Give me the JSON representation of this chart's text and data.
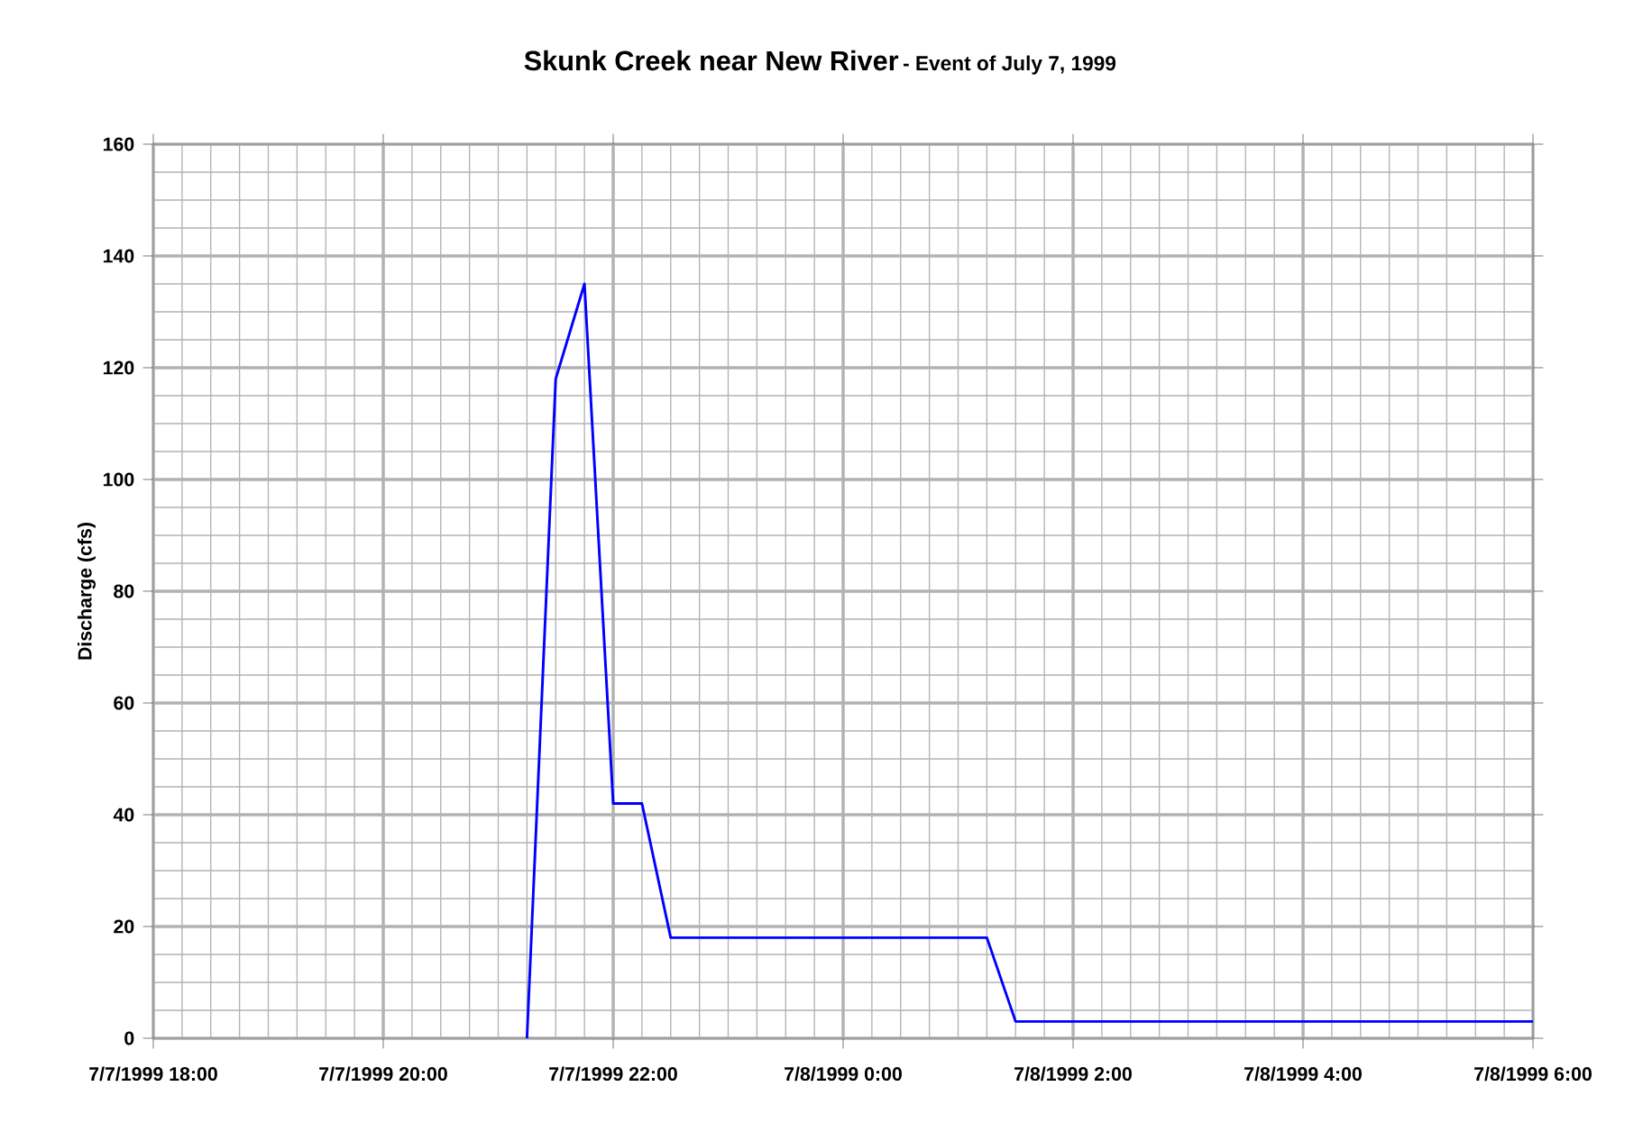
{
  "chart_data": {
    "type": "line",
    "title": "Skunk Creek near New River",
    "subtitle": "- Event of July 7, 1999",
    "ylabel": "Discharge (cfs)",
    "x": [
      "1999-07-07T21:15",
      "1999-07-07T21:30",
      "1999-07-07T21:45",
      "1999-07-07T22:00",
      "1999-07-07T22:15",
      "1999-07-07T22:30",
      "1999-07-08T01:15",
      "1999-07-08T01:30",
      "1999-07-08T06:00"
    ],
    "series": [
      {
        "color": "#0000ff",
        "values": [
          0,
          118,
          135,
          42,
          42,
          18,
          18,
          3,
          3
        ]
      }
    ],
    "xlim": [
      "1999-07-07T18:00",
      "1999-07-08T06:00"
    ],
    "xticks": [
      {
        "value": "1999-07-07T18:00",
        "label": "7/7/1999 18:00"
      },
      {
        "value": "1999-07-07T20:00",
        "label": "7/7/1999 20:00"
      },
      {
        "value": "1999-07-07T22:00",
        "label": "7/7/1999 22:00"
      },
      {
        "value": "1999-07-08T00:00",
        "label": "7/8/1999 0:00"
      },
      {
        "value": "1999-07-08T02:00",
        "label": "7/8/1999 2:00"
      },
      {
        "value": "1999-07-08T04:00",
        "label": "7/8/1999 4:00"
      },
      {
        "value": "1999-07-08T06:00",
        "label": "7/8/1999 6:00"
      }
    ],
    "ylim": [
      0,
      160
    ],
    "yticks": [
      0,
      20,
      40,
      60,
      80,
      100,
      120,
      140,
      160
    ],
    "grid": true
  }
}
